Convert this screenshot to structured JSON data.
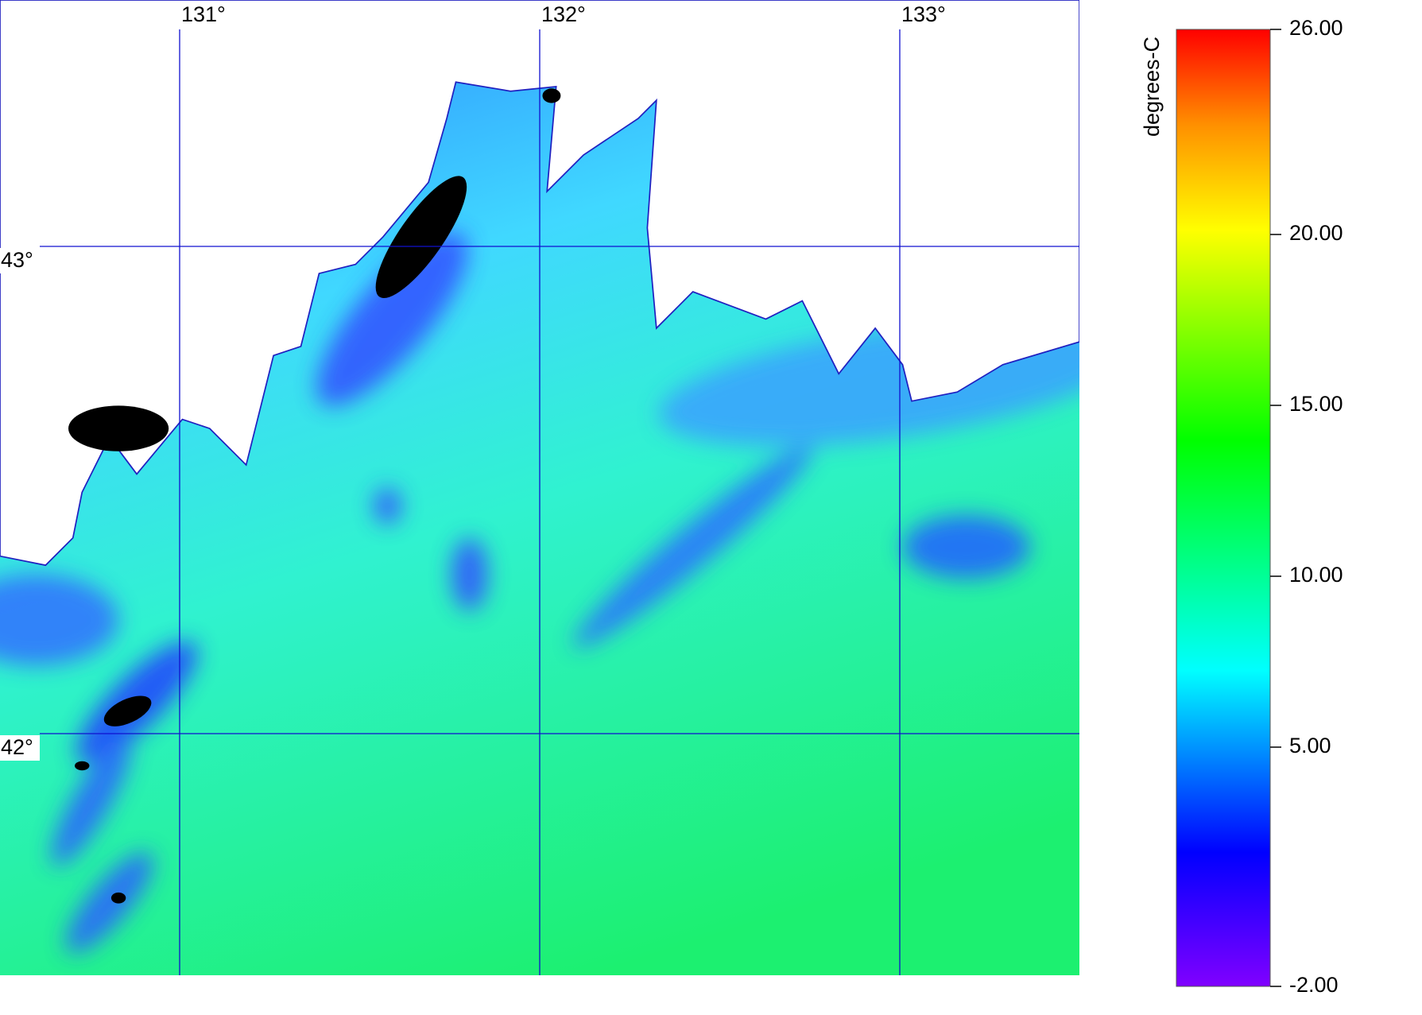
{
  "map": {
    "lon_gridlines": [
      {
        "value": 131,
        "label": "131°"
      },
      {
        "value": 132,
        "label": "132°"
      },
      {
        "value": 133,
        "label": "133°"
      }
    ],
    "lat_gridlines": [
      {
        "value": 43,
        "label": "43°"
      },
      {
        "value": 42,
        "label": "42°"
      }
    ],
    "colorbar": {
      "title": "degrees-C",
      "range": [
        -2,
        26
      ],
      "ticks": [
        {
          "value": 26,
          "label": "26.00"
        },
        {
          "value": 20,
          "label": "20.00"
        },
        {
          "value": 15,
          "label": "15.00"
        },
        {
          "value": 10,
          "label": "10.00"
        },
        {
          "value": 5,
          "label": "5.00"
        },
        {
          "value": -2,
          "label": "-2.00"
        }
      ]
    }
  }
}
